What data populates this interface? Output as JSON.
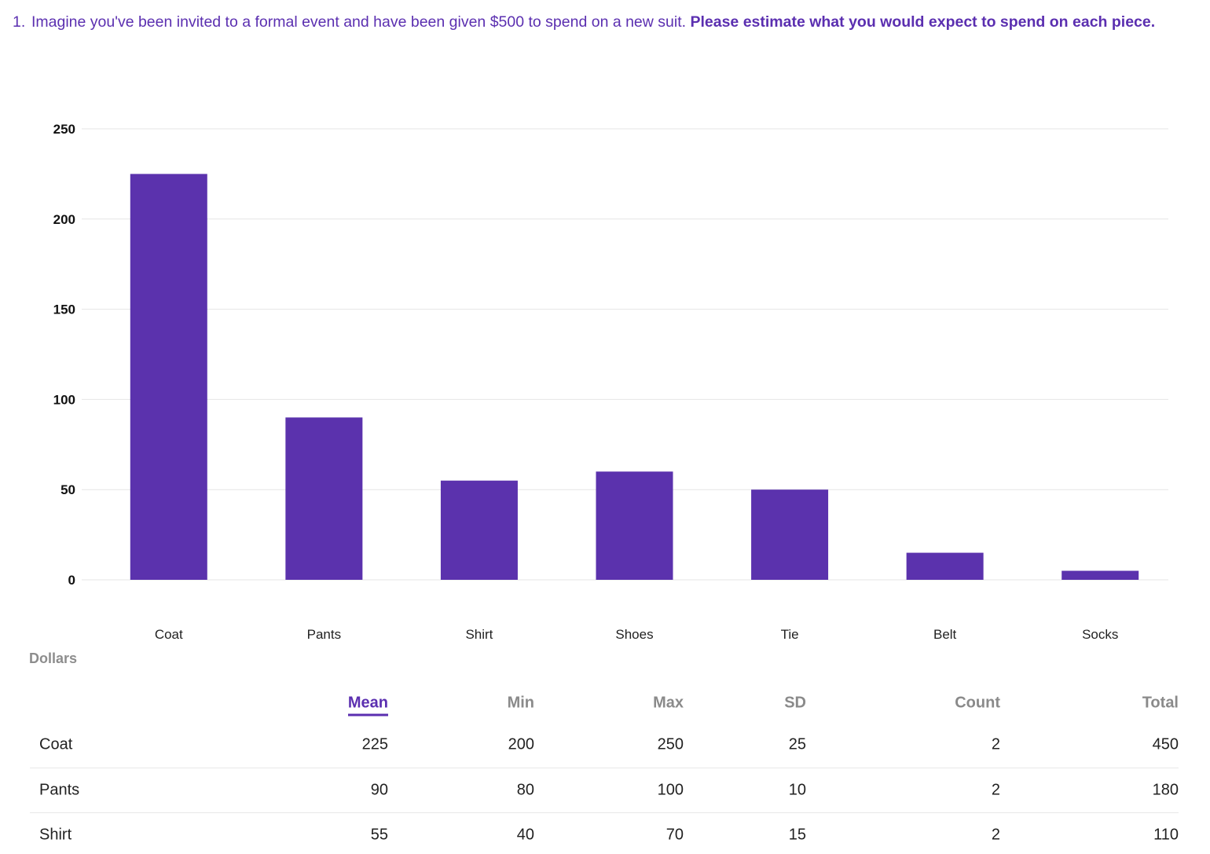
{
  "question": {
    "number": "1.",
    "text": "Imagine you've been invited to a formal event and have been given $500 to spend on a new suit.",
    "bold_text": "Please estimate what you would expect to spend on each piece."
  },
  "colors": {
    "accent": "#5b2fb0",
    "bar": "#5b32ad",
    "muted": "#8a8a8a",
    "grid": "#e6e6e6"
  },
  "chart_data": {
    "type": "bar",
    "categories": [
      "Coat",
      "Pants",
      "Shirt",
      "Shoes",
      "Tie",
      "Belt",
      "Socks"
    ],
    "values": [
      225,
      90,
      55,
      60,
      50,
      15,
      5
    ],
    "yticks": [
      0,
      50,
      100,
      150,
      200,
      250
    ],
    "ylim": [
      0,
      250
    ],
    "grid": true,
    "title": "",
    "xlabel": "",
    "ylabel": ""
  },
  "axis_unit": "Dollars",
  "stats_table": {
    "columns": [
      "Mean",
      "Min",
      "Max",
      "SD",
      "Count",
      "Total"
    ],
    "active_column": "Mean",
    "rows": [
      {
        "name": "Coat",
        "values": [
          "225",
          "200",
          "250",
          "25",
          "2",
          "450"
        ]
      },
      {
        "name": "Pants",
        "values": [
          "90",
          "80",
          "100",
          "10",
          "2",
          "180"
        ]
      },
      {
        "name": "Shirt",
        "values": [
          "55",
          "40",
          "70",
          "15",
          "2",
          "110"
        ]
      }
    ]
  }
}
